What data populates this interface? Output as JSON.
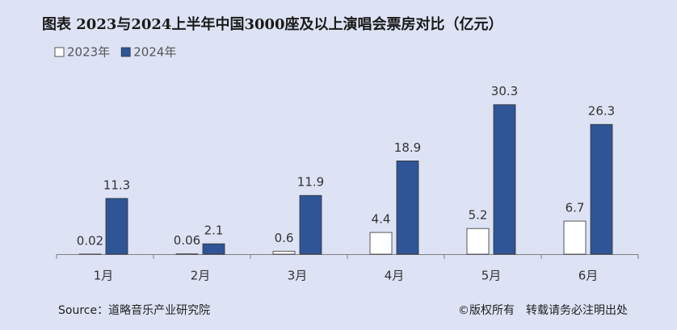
{
  "chart_data": {
    "type": "bar",
    "title": "图表 2023与2024上半年中国3000座及以上演唱会票房对比（亿元）",
    "categories": [
      "1月",
      "2月",
      "3月",
      "4月",
      "5月",
      "6月"
    ],
    "series": [
      {
        "name": "2023年",
        "color": "#ffffff",
        "values": [
          0.02,
          0.06,
          0.6,
          4.4,
          5.2,
          6.7
        ]
      },
      {
        "name": "2024年",
        "color": "#2f5597",
        "values": [
          11.3,
          2.1,
          11.9,
          18.9,
          30.3,
          26.3
        ]
      }
    ],
    "ylim": [
      0,
      35
    ],
    "source": "Source：道略音乐产业研究院",
    "copyright": "©版权所有　转载请务必注明出处"
  }
}
